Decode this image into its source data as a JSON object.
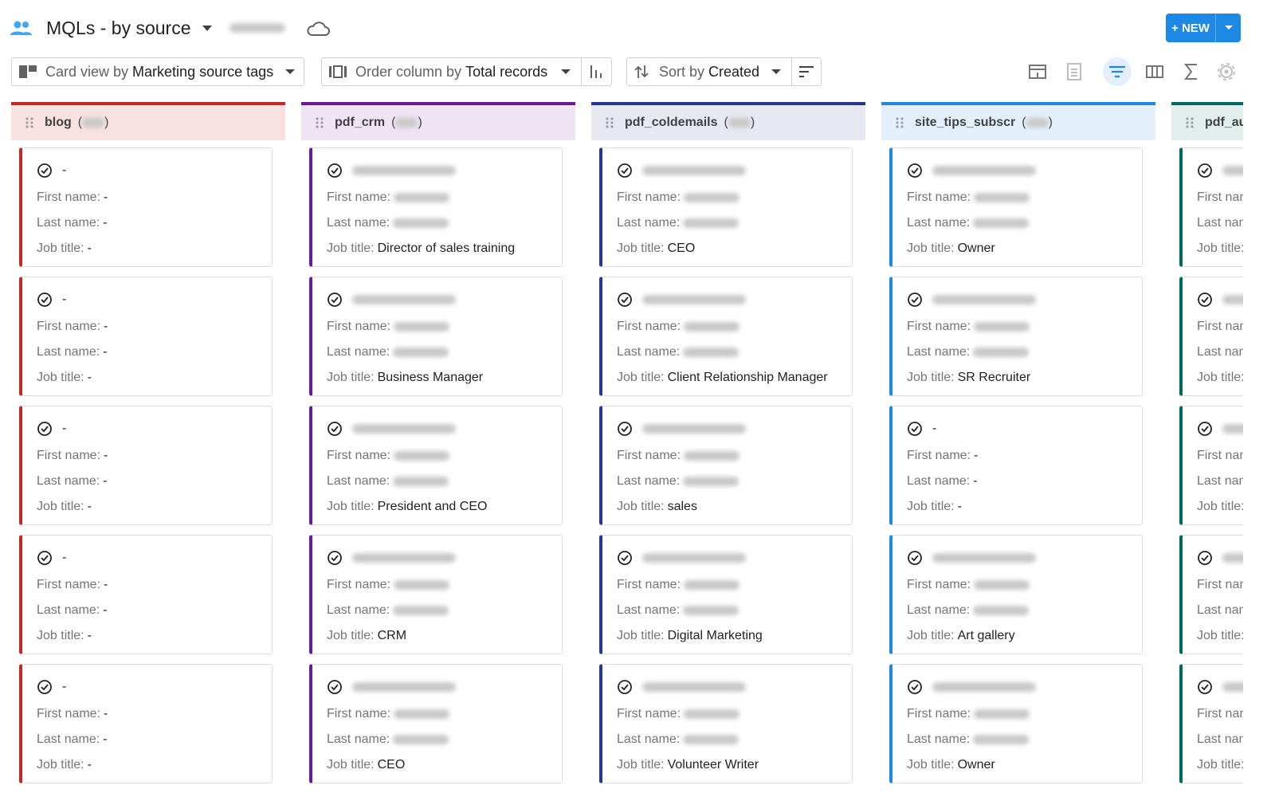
{
  "header": {
    "title": "MQLs - by source",
    "new_button": "+ NEW"
  },
  "toolbar": {
    "card_view_prefix": "Card view by",
    "card_view_value": "Marketing source tags",
    "order_prefix": "Order column by",
    "order_value": "Total records",
    "sort_prefix": "Sort by",
    "sort_value": "Created"
  },
  "board": {
    "count_brackets": [
      "(",
      ")"
    ],
    "field_labels": [
      "First name:",
      "Last name:",
      "Job title:"
    ],
    "columns": [
      {
        "name": "blog",
        "color": "#c62828",
        "bg": "#f9e1e1",
        "count": null,
        "cards": [
          {
            "title": "-",
            "first_name": "-",
            "last_name": "-",
            "job_title": "-"
          },
          {
            "title": "-",
            "first_name": "-",
            "last_name": "-",
            "job_title": "-"
          },
          {
            "title": "-",
            "first_name": "-",
            "last_name": "-",
            "job_title": "-"
          },
          {
            "title": "-",
            "first_name": "-",
            "last_name": "-",
            "job_title": "-"
          },
          {
            "title": "-",
            "first_name": "-",
            "last_name": "-",
            "job_title": "-"
          }
        ]
      },
      {
        "name": "pdf_crm",
        "color": "#6a1b9a",
        "bg": "#efe4f4",
        "count": null,
        "cards": [
          {
            "title": null,
            "first_name": null,
            "last_name": null,
            "job_title": "Director of sales training"
          },
          {
            "title": null,
            "first_name": null,
            "last_name": null,
            "job_title": "Business Manager"
          },
          {
            "title": null,
            "first_name": null,
            "last_name": null,
            "job_title": "President and CEO"
          },
          {
            "title": null,
            "first_name": null,
            "last_name": null,
            "job_title": "CRM"
          },
          {
            "title": null,
            "first_name": null,
            "last_name": null,
            "job_title": "CEO"
          }
        ]
      },
      {
        "name": "pdf_coldemails",
        "color": "#283593",
        "bg": "#e7e8f2",
        "count": null,
        "cards": [
          {
            "title": null,
            "first_name": null,
            "last_name": null,
            "job_title": "CEO"
          },
          {
            "title": null,
            "first_name": null,
            "last_name": null,
            "job_title": "Client Relationship Manager"
          },
          {
            "title": null,
            "first_name": null,
            "last_name": null,
            "job_title": "sales"
          },
          {
            "title": null,
            "first_name": null,
            "last_name": null,
            "job_title": "Digital Marketing"
          },
          {
            "title": null,
            "first_name": null,
            "last_name": null,
            "job_title": "Volunteer Writer"
          }
        ]
      },
      {
        "name": "site_tips_subscr",
        "color": "#1e88e5",
        "bg": "#e3f0fc",
        "count": null,
        "cards": [
          {
            "title": null,
            "first_name": null,
            "last_name": null,
            "job_title": "Owner"
          },
          {
            "title": null,
            "first_name": null,
            "last_name": null,
            "job_title": "SR Recruiter"
          },
          {
            "title": "-",
            "first_name": "-",
            "last_name": "-",
            "job_title": "-"
          },
          {
            "title": null,
            "first_name": null,
            "last_name": null,
            "job_title": "Art gallery"
          },
          {
            "title": null,
            "first_name": null,
            "last_name": null,
            "job_title": "Owner"
          }
        ]
      },
      {
        "name": "pdf_au",
        "color": "#00695c",
        "bg": "#e1eeec",
        "count": null,
        "cards": [
          {
            "title": null,
            "first_name": null,
            "last_name": null,
            "job_title": null
          },
          {
            "title": null,
            "first_name": null,
            "last_name": null,
            "job_title": null
          },
          {
            "title": null,
            "first_name": null,
            "last_name": null,
            "job_title": null
          },
          {
            "title": null,
            "first_name": null,
            "last_name": null,
            "job_title": null
          },
          {
            "title": null,
            "first_name": null,
            "last_name": null,
            "job_title": null
          }
        ]
      }
    ]
  }
}
